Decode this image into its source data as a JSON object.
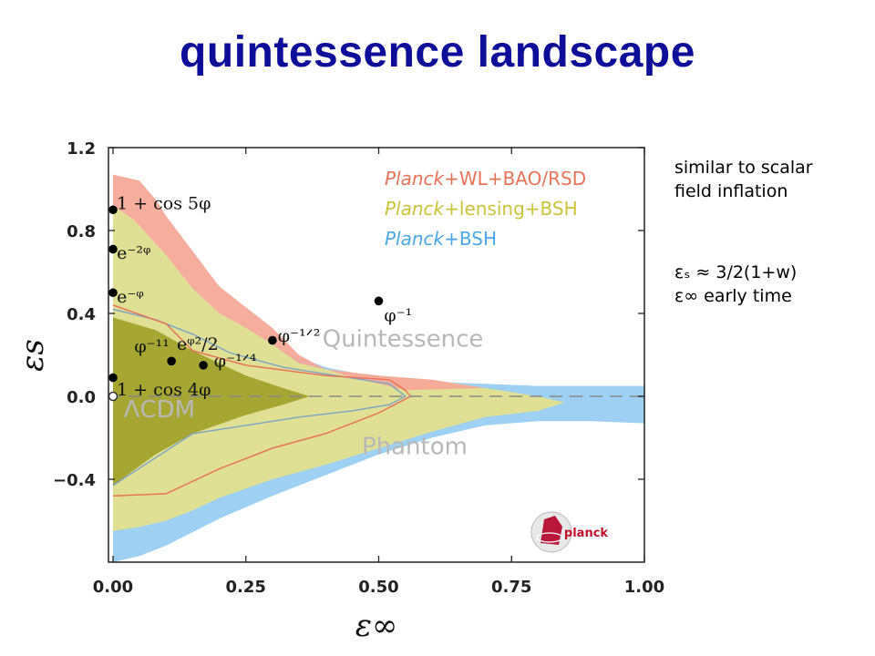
{
  "slide": {
    "title": "quintessence landscape",
    "notes": {
      "line1": "similar to scalar",
      "line2": "field inflation",
      "line3": "εₛ ≈ 3/2(1+w)",
      "line4": "ε∞ early time"
    }
  },
  "chart_data": {
    "type": "contour",
    "xlabel": "ε∞",
    "ylabel": "εs",
    "xlim": [
      0.0,
      1.0
    ],
    "ylim": [
      -0.8,
      1.2
    ],
    "xticks": [
      0.0,
      0.25,
      0.5,
      0.75,
      1.0
    ],
    "xtick_labels": [
      "0.00",
      "0.25",
      "0.50",
      "0.75",
      "1.00"
    ],
    "yticks": [
      -0.4,
      0.0,
      0.4,
      0.8,
      1.2
    ],
    "ytick_labels": [
      "−0.4",
      "0.0",
      "0.4",
      "0.8",
      "1.2"
    ],
    "reference_line": {
      "y": 0.0,
      "style": "dashed"
    },
    "legend_position": "top-right",
    "series": [
      {
        "name": "Planck+WL+BAO/RSD",
        "name_parts": [
          "Planck",
          "+WL+BAO/RSD"
        ],
        "color": "#e8735a",
        "fill": "#f4a998",
        "outer": [
          [
            0.0,
            1.07
          ],
          [
            0.05,
            1.04
          ],
          [
            0.08,
            0.95
          ],
          [
            0.1,
            0.87
          ],
          [
            0.15,
            0.7
          ],
          [
            0.2,
            0.53
          ],
          [
            0.25,
            0.43
          ],
          [
            0.3,
            0.33
          ],
          [
            0.35,
            0.2
          ],
          [
            0.4,
            0.13
          ],
          [
            0.45,
            0.09
          ],
          [
            0.5,
            0.06
          ],
          [
            0.55,
            0.03
          ]
        ],
        "boundary": [
          [
            0.0,
            -0.48
          ],
          [
            0.1,
            -0.47
          ],
          [
            0.2,
            -0.35
          ],
          [
            0.3,
            -0.25
          ],
          [
            0.4,
            -0.18
          ],
          [
            0.5,
            -0.08
          ],
          [
            0.56,
            0.0
          ],
          [
            0.55,
            0.03
          ],
          [
            0.52,
            0.08
          ],
          [
            0.4,
            0.1
          ],
          [
            0.25,
            0.15
          ],
          [
            0.15,
            0.22
          ],
          [
            0.1,
            0.35
          ],
          [
            0.0,
            0.44
          ]
        ]
      },
      {
        "name": "Planck+lensing+BSH",
        "name_parts": [
          "Planck",
          "+lensing+BSH"
        ],
        "color": "#c9c43a",
        "fill": "#dfe093",
        "outer": [
          [
            0.0,
            0.92
          ],
          [
            0.04,
            0.85
          ],
          [
            0.1,
            0.68
          ],
          [
            0.15,
            0.52
          ],
          [
            0.2,
            0.4
          ],
          [
            0.25,
            0.33
          ],
          [
            0.3,
            0.25
          ],
          [
            0.35,
            0.16
          ],
          [
            0.4,
            0.13
          ],
          [
            0.5,
            0.1
          ],
          [
            0.6,
            0.08
          ],
          [
            0.7,
            0.04
          ],
          [
            0.8,
            0.0
          ],
          [
            0.85,
            -0.03
          ],
          [
            0.8,
            -0.07
          ],
          [
            0.7,
            -0.1
          ],
          [
            0.6,
            -0.17
          ],
          [
            0.5,
            -0.25
          ],
          [
            0.4,
            -0.33
          ],
          [
            0.3,
            -0.4
          ],
          [
            0.2,
            -0.49
          ],
          [
            0.15,
            -0.55
          ],
          [
            0.1,
            -0.6
          ],
          [
            0.05,
            -0.63
          ],
          [
            0.0,
            -0.65
          ]
        ]
      },
      {
        "name": "Planck+BSH",
        "name_parts": [
          "Planck",
          "+BSH"
        ],
        "color": "#4aa8e8",
        "fill": "#9dd0f2",
        "outer": [
          [
            0.0,
            0.72
          ],
          [
            0.1,
            0.56
          ],
          [
            0.2,
            0.38
          ],
          [
            0.3,
            0.24
          ],
          [
            0.4,
            0.14
          ],
          [
            0.5,
            0.09
          ],
          [
            0.6,
            0.07
          ],
          [
            0.7,
            0.06
          ],
          [
            0.8,
            0.05
          ],
          [
            0.9,
            0.05
          ],
          [
            1.0,
            0.05
          ],
          [
            1.0,
            -0.13
          ],
          [
            0.9,
            -0.12
          ],
          [
            0.8,
            -0.12
          ],
          [
            0.7,
            -0.14
          ],
          [
            0.6,
            -0.2
          ],
          [
            0.5,
            -0.28
          ],
          [
            0.4,
            -0.38
          ],
          [
            0.3,
            -0.48
          ],
          [
            0.2,
            -0.59
          ],
          [
            0.1,
            -0.72
          ],
          [
            0.05,
            -0.77
          ],
          [
            0.0,
            -0.8
          ]
        ]
      }
    ],
    "inner_region": {
      "color": "#a6a632",
      "outline": [
        [
          0.0,
          0.38
        ],
        [
          0.08,
          0.32
        ],
        [
          0.15,
          0.22
        ],
        [
          0.25,
          0.1
        ],
        [
          0.32,
          0.04
        ],
        [
          0.37,
          0.0
        ],
        [
          0.32,
          -0.04
        ],
        [
          0.25,
          -0.09
        ],
        [
          0.15,
          -0.18
        ],
        [
          0.08,
          -0.28
        ],
        [
          0.0,
          -0.43
        ]
      ]
    },
    "regions": [
      {
        "label": "Quintessence",
        "x": 0.68,
        "y": 0.24
      },
      {
        "label": "Phantom",
        "x": 0.65,
        "y": -0.28
      },
      {
        "label": "ΛCDM",
        "x": 0.02,
        "y": -0.1
      }
    ],
    "models": [
      {
        "label": "1 + cos 5φ",
        "x": 0.0,
        "y": 0.9,
        "lx": 0.007,
        "ly": 0.93
      },
      {
        "label": "e⁻²ᵠ",
        "x": 0.0,
        "y": 0.71,
        "lx": 0.007,
        "ly": 0.69
      },
      {
        "label": "e⁻ᵠ",
        "x": 0.0,
        "y": 0.5,
        "lx": 0.007,
        "ly": 0.48
      },
      {
        "label": "φ⁻¹¹",
        "x": 0.11,
        "y": 0.17,
        "lx": 0.04,
        "ly": 0.24
      },
      {
        "label": "eᵠ²/2",
        "x": 0.17,
        "y": 0.15,
        "lx": 0.12,
        "ly": 0.25
      },
      {
        "label": "φ⁻¹ᐟ⁴",
        "x": 0.17,
        "y": 0.15,
        "lx": 0.19,
        "ly": 0.17
      },
      {
        "label": "φ⁻¹ᐟ²",
        "x": 0.3,
        "y": 0.27,
        "lx": 0.31,
        "ly": 0.29
      },
      {
        "label": "φ⁻¹",
        "x": 0.5,
        "y": 0.46,
        "lx": 0.51,
        "ly": 0.39
      },
      {
        "label": "1 + cos 4φ",
        "x": 0.0,
        "y": 0.09,
        "lx": 0.007,
        "ly": 0.03
      },
      {
        "label": "",
        "x": 0.0,
        "y": 0.0,
        "open": true,
        "lx": 0.0,
        "ly": 0.0
      }
    ],
    "logo_text": "planck"
  }
}
